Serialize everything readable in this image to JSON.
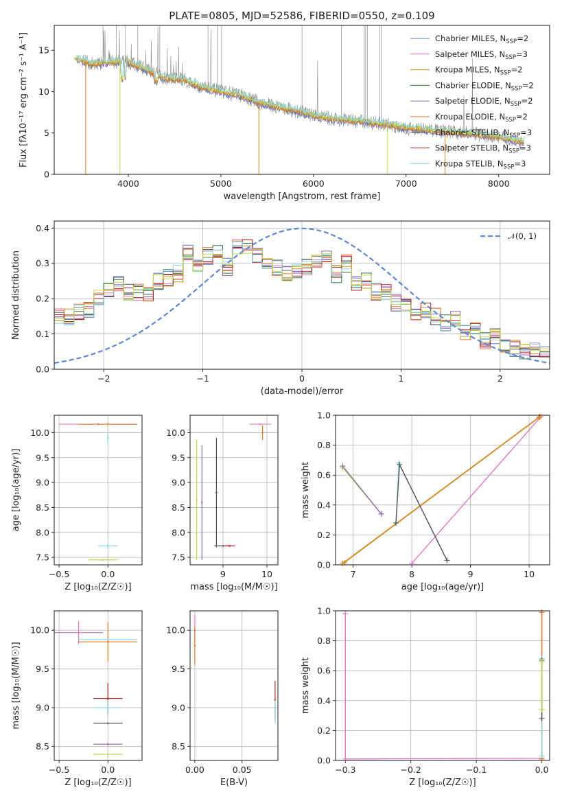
{
  "colors": {
    "Chabrier MILES": "#5a6fd6",
    "Salpeter MILES": "#e377c2",
    "Kroupa MILES": "#d38b1f",
    "Chabrier ELODIE": "#2c7a4a",
    "Salpeter ELODIE": "#9467bd",
    "Kroupa ELODIE": "#e07b25",
    "Chabrier STELIB": "#555555",
    "Salpeter STELIB": "#b22222",
    "Kroupa STELIB": "#88d8e0",
    "lime": "#bcd94a",
    "normal": "#5a86d6"
  },
  "chart_data": [
    {
      "id": "spectrum",
      "type": "line",
      "title": "PLATE=0805, MJD=52586, FIBERID=0550, z=0.109",
      "xlabel": "wavelength [Angstrom, rest frame]",
      "ylabel": "Flux [fλ10⁻¹⁷ erg cm⁻² s⁻¹ A⁻¹]",
      "xlim": [
        3200,
        8550
      ],
      "ylim": [
        0,
        18
      ],
      "xticks": [
        4000,
        5000,
        6000,
        7000,
        8000
      ],
      "yticks": [
        0,
        5,
        10,
        15
      ],
      "grid": false,
      "legend_position": "top-right",
      "legend": [
        {
          "name": "Chabrier MILES",
          "sub": "SSP",
          "n": "2"
        },
        {
          "name": "Salpeter MILES",
          "sub": "SSP",
          "n": "3"
        },
        {
          "name": "Kroupa MILES",
          "sub": "SSP",
          "n": "2"
        },
        {
          "name": "Chabrier ELODIE",
          "sub": "SSP",
          "n": "2"
        },
        {
          "name": "Salpeter ELODIE",
          "sub": "SSP",
          "n": "2"
        },
        {
          "name": "Kroupa ELODIE",
          "sub": "SSP",
          "n": "2"
        },
        {
          "name": "Chabrier STELIB",
          "sub": "SSP",
          "n": "3"
        },
        {
          "name": "Salpeter STELIB",
          "sub": "SSP",
          "n": "3"
        },
        {
          "name": "Kroupa STELIB",
          "sub": "SSP",
          "n": "3"
        }
      ],
      "continuum": [
        [
          3400,
          14.2
        ],
        [
          3600,
          13.3
        ],
        [
          3800,
          13.6
        ],
        [
          4000,
          13.6
        ],
        [
          4200,
          12.6
        ],
        [
          4400,
          11.6
        ],
        [
          4600,
          11.4
        ],
        [
          4800,
          10.5
        ],
        [
          5000,
          10.0
        ],
        [
          5200,
          9.6
        ],
        [
          5400,
          8.7
        ],
        [
          5600,
          8.2
        ],
        [
          5800,
          7.7
        ],
        [
          6000,
          7.1
        ],
        [
          6200,
          6.7
        ],
        [
          6400,
          6.5
        ],
        [
          6600,
          6.3
        ],
        [
          6800,
          6.0
        ],
        [
          7000,
          5.6
        ],
        [
          7200,
          5.4
        ],
        [
          7400,
          5.2
        ],
        [
          7600,
          5.0
        ],
        [
          7800,
          4.8
        ],
        [
          8000,
          4.5
        ],
        [
          8280,
          3.9
        ]
      ]
    },
    {
      "id": "residuals",
      "type": "line",
      "xlabel": "(data-model)/error",
      "ylabel": "Normed distribution",
      "xlim": [
        -2.5,
        2.5
      ],
      "ylim": [
        0,
        0.42
      ],
      "xticks": [
        -2,
        -1,
        0,
        1,
        2
      ],
      "yticks": [
        0.0,
        0.1,
        0.2,
        0.3,
        0.4
      ],
      "grid": true,
      "legend_position": "top-right",
      "normal_label": "𝒩(0, 1)",
      "hist_bin_width": 0.1,
      "hist_base": [
        0.15,
        0.15,
        0.16,
        0.17,
        0.2,
        0.23,
        0.24,
        0.22,
        0.22,
        0.21,
        0.25,
        0.26,
        0.27,
        0.33,
        0.3,
        0.32,
        0.34,
        0.29,
        0.35,
        0.35,
        0.32,
        0.31,
        0.29,
        0.27,
        0.28,
        0.29,
        0.3,
        0.31,
        0.27,
        0.3,
        0.24,
        0.25,
        0.22,
        0.22,
        0.19,
        0.18,
        0.16,
        0.17,
        0.15,
        0.13,
        0.14,
        0.1,
        0.12,
        0.08,
        0.09,
        0.06,
        0.06,
        0.05,
        0.05,
        0.04
      ]
    },
    {
      "id": "age-vs-Z",
      "type": "scatter",
      "xlabel": "Z [log₁₀(Z/Z☉)]",
      "ylabel": "age  [log₁₀(age/yr)]",
      "xlim": [
        -0.55,
        0.35
      ],
      "ylim": [
        7.35,
        10.35
      ],
      "xticks": [
        -0.5,
        0.0
      ],
      "yticks": [
        7.5,
        8.0,
        8.5,
        9.0,
        9.5,
        10.0
      ],
      "grid": true,
      "points": [
        {
          "c": "Salpeter MILES",
          "x": -0.1,
          "y": 10.17,
          "xe": 0.4,
          "ye": 0
        },
        {
          "c": "Kroupa ELODIE",
          "x": 0.0,
          "y": 10.17,
          "xe": 0.3,
          "ye": 0
        },
        {
          "c": "Kroupa STELIB",
          "x": 0.0,
          "y": 9.9,
          "xe": 0,
          "ye": 0.1
        },
        {
          "c": "Kroupa STELIB",
          "x": 0.0,
          "y": 7.73,
          "xe": 0.1,
          "ye": 0.05
        },
        {
          "c": "lime",
          "x": -0.05,
          "y": 7.45,
          "xe": 0.15,
          "ye": 0
        }
      ]
    },
    {
      "id": "age-vs-mass",
      "type": "scatter",
      "xlabel": "mass [log₁₀(M/M☉)]",
      "ylabel": "",
      "xlim": [
        8.25,
        10.25
      ],
      "ylim": [
        7.35,
        10.35
      ],
      "xticks": [
        9,
        10
      ],
      "yticks": [
        7.5,
        8.0,
        8.5,
        9.0,
        9.5,
        10.0
      ],
      "grid": true,
      "points": [
        {
          "c": "Salpeter MILES",
          "x": 9.85,
          "y": 10.17,
          "xe": 0.25,
          "ye": 0
        },
        {
          "c": "Kroupa ELODIE",
          "x": 9.9,
          "y": 10.0,
          "xe": 0,
          "ye": 0.15
        },
        {
          "c": "Chabrier STELIB",
          "x": 9.0,
          "y": 7.73,
          "xe": 0.2,
          "ye": 0
        },
        {
          "c": "Salpeter STELIB",
          "x": 9.15,
          "y": 7.73,
          "xe": 0.12,
          "ye": 0
        },
        {
          "c": "lime",
          "x": 8.4,
          "y": 8.65,
          "xe": 0,
          "ye": 1.2
        },
        {
          "c": "Salpeter ELODIE",
          "x": 8.52,
          "y": 8.6,
          "xe": 0,
          "ye": 1.15
        },
        {
          "c": "Chabrier STELIB",
          "x": 8.85,
          "y": 8.8,
          "xe": 0,
          "ye": 1.1
        }
      ]
    },
    {
      "id": "weight-vs-age",
      "type": "line",
      "xlabel": "age  [log₁₀(age/yr)]",
      "ylabel": "mass weight",
      "xlim": [
        6.7,
        10.35
      ],
      "ylim": [
        0,
        1.0
      ],
      "xticks": [
        7,
        8,
        9,
        10
      ],
      "yticks": [
        0.0,
        0.2,
        0.4,
        0.6,
        0.8,
        1.0
      ],
      "grid": true,
      "series": [
        {
          "c": "Salpeter MILES",
          "points": [
            [
              8.0,
              0.01
            ],
            [
              10.2,
              0.99
            ]
          ]
        },
        {
          "c": "Kroupa ELODIE",
          "points": [
            [
              6.82,
              0.01
            ],
            [
              10.18,
              0.99
            ]
          ]
        },
        {
          "c": "Kroupa MILES",
          "points": [
            [
              6.85,
              0.015
            ],
            [
              10.17,
              0.985
            ]
          ]
        },
        {
          "c": "lime",
          "points": [
            [
              6.82,
              0.65
            ],
            [
              7.48,
              0.34
            ]
          ]
        },
        {
          "c": "Salpeter ELODIE",
          "points": [
            [
              6.82,
              0.66
            ],
            [
              7.48,
              0.34
            ]
          ]
        },
        {
          "c": "Kroupa STELIB",
          "points": [
            [
              7.73,
              0.28
            ],
            [
              7.78,
              0.68
            ],
            [
              8.6,
              0.03
            ]
          ]
        },
        {
          "c": "Chabrier STELIB",
          "points": [
            [
              7.73,
              0.28
            ],
            [
              7.79,
              0.67
            ],
            [
              8.6,
              0.03
            ]
          ]
        }
      ]
    },
    {
      "id": "mass-vs-Z",
      "type": "scatter",
      "xlabel": "Z [log₁₀(Z/Z☉)]",
      "ylabel": "mass [log₁₀(M/M☉)]",
      "xlim": [
        -0.55,
        0.35
      ],
      "ylim": [
        8.32,
        10.25
      ],
      "xticks": [
        -0.5,
        0.0
      ],
      "yticks": [
        8.5,
        9.0,
        9.5,
        10.0
      ],
      "grid": true,
      "points": [
        {
          "c": "Salpeter MILES",
          "x": -0.3,
          "y": 9.97,
          "xe": 0.25,
          "ye": 0.15
        },
        {
          "c": "Kroupa ELODIE",
          "x": 0.0,
          "y": 9.85,
          "xe": 0.3,
          "ye": 0.25
        },
        {
          "c": "Kroupa STELIB",
          "x": 0.0,
          "y": 9.88,
          "xe": 0.3,
          "ye": 0
        },
        {
          "c": "Salpeter STELIB",
          "x": 0.0,
          "y": 9.12,
          "xe": 0.15,
          "ye": 0.2
        },
        {
          "c": "Kroupa STELIB",
          "x": 0.0,
          "y": 9.0,
          "xe": 0.15,
          "ye": 0.1
        },
        {
          "c": "Chabrier STELIB",
          "x": 0.0,
          "y": 8.8,
          "xe": 0.15,
          "ye": 0
        },
        {
          "c": "Salpeter ELODIE",
          "x": 0.0,
          "y": 8.53,
          "xe": 0.15,
          "ye": 0
        },
        {
          "c": "lime",
          "x": 0.0,
          "y": 8.4,
          "xe": 0.15,
          "ye": 0
        }
      ]
    },
    {
      "id": "mass-vs-EBV",
      "type": "scatter",
      "xlabel": "E(B-V)",
      "ylabel": "",
      "xlim": [
        -0.005,
        0.088
      ],
      "ylim": [
        8.32,
        10.25
      ],
      "xticks": [
        0.0,
        0.05
      ],
      "yticks": [
        8.5,
        9.0,
        9.5,
        10.0
      ],
      "grid": true,
      "points": [
        {
          "c": "Salpeter MILES",
          "x": 0.0,
          "y": 10.0,
          "xe": 0,
          "ye": 0.2
        },
        {
          "c": "Kroupa ELODIE",
          "x": 0.0,
          "y": 9.8,
          "xe": 0,
          "ye": 0.25
        },
        {
          "c": "Salpeter STELIB",
          "x": 0.085,
          "y": 9.1,
          "xe": 0,
          "ye": 0.25
        },
        {
          "c": "Kroupa STELIB",
          "x": 0.085,
          "y": 8.95,
          "xe": 0,
          "ye": 0.15
        }
      ]
    },
    {
      "id": "weight-vs-Z",
      "type": "line",
      "xlabel": "Z [log₁₀(Z/Z☉)]",
      "ylabel": "mass weight",
      "xlim": [
        -0.315,
        0.012
      ],
      "ylim": [
        0,
        1.0
      ],
      "xticks": [
        -0.3,
        -0.2,
        -0.1,
        0.0
      ],
      "yticks": [
        0.0,
        0.2,
        0.4,
        0.6,
        0.8,
        1.0
      ],
      "grid": true,
      "series": [
        {
          "c": "Salpeter MILES",
          "points": [
            [
              -0.3,
              0.98
            ],
            [
              -0.3,
              0.01
            ],
            [
              0.0,
              0.015
            ],
            [
              0.0,
              0.99
            ]
          ]
        },
        {
          "c": "Kroupa ELODIE",
          "points": [
            [
              0.0,
              0.01
            ],
            [
              0.0,
              0.99
            ]
          ]
        },
        {
          "c": "Kroupa STELIB",
          "points": [
            [
              0.0,
              0.03
            ],
            [
              0.0,
              0.68
            ]
          ]
        },
        {
          "c": "Chabrier STELIB",
          "points": [
            [
              0.0,
              0.28
            ],
            [
              0.0,
              0.67
            ]
          ]
        },
        {
          "c": "lime",
          "points": [
            [
              0.0,
              0.34
            ],
            [
              0.0,
              0.66
            ]
          ]
        }
      ]
    }
  ]
}
